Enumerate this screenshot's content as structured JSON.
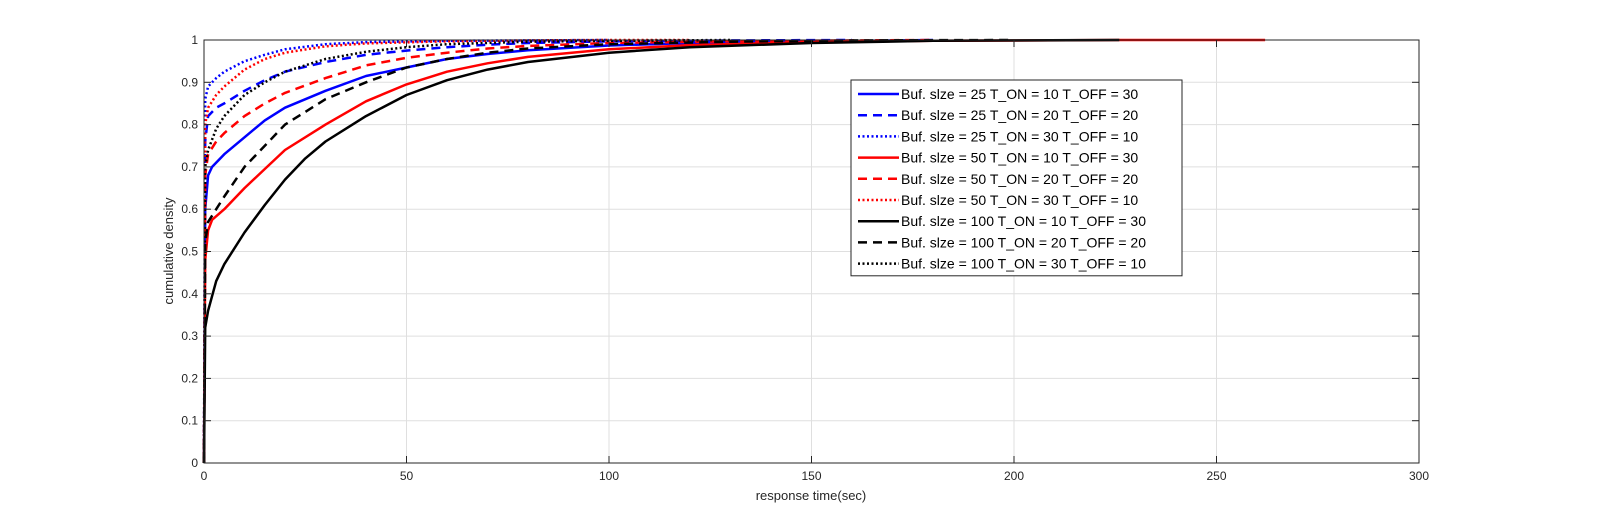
{
  "chart_data": {
    "type": "line",
    "title": "",
    "xlabel": "response time(sec)",
    "ylabel": "cumulative density",
    "xlim": [
      0,
      300
    ],
    "ylim": [
      0,
      1
    ],
    "xticks": [
      0,
      50,
      100,
      150,
      200,
      250,
      300
    ],
    "yticks": [
      0,
      0.1,
      0.2,
      0.3,
      0.4,
      0.5,
      0.6,
      0.7,
      0.8,
      0.9,
      1
    ],
    "grid": true,
    "legend_position": "top-right",
    "series": [
      {
        "name": "Buf. slze = 25 T_ON = 10 T_OFF = 30",
        "color": "#0000ff",
        "style": "solid",
        "x": [
          0,
          0.3,
          1,
          2,
          5,
          10,
          15,
          20,
          30,
          40,
          50,
          60,
          70,
          80,
          100,
          120,
          150,
          180
        ],
        "y": [
          0,
          0.6,
          0.68,
          0.7,
          0.73,
          0.77,
          0.81,
          0.84,
          0.88,
          0.915,
          0.935,
          0.955,
          0.967,
          0.976,
          0.987,
          0.993,
          0.997,
          1
        ]
      },
      {
        "name": "Buf. slze = 25 T_ON = 20 T_OFF = 20",
        "color": "#0000ff",
        "style": "dashed",
        "x": [
          0,
          0.3,
          1,
          3,
          5,
          10,
          15,
          20,
          30,
          40,
          50,
          60,
          70,
          80,
          100,
          130,
          160
        ],
        "y": [
          0,
          0.76,
          0.82,
          0.84,
          0.85,
          0.88,
          0.905,
          0.925,
          0.948,
          0.965,
          0.975,
          0.983,
          0.989,
          0.993,
          0.997,
          0.999,
          1
        ]
      },
      {
        "name": "Buf. slze = 25 T_ON = 30 T_OFF = 10",
        "color": "#0000ff",
        "style": "dotted",
        "x": [
          0,
          0.3,
          1,
          3,
          5,
          10,
          15,
          20,
          30,
          40,
          60,
          80,
          100
        ],
        "y": [
          0,
          0.86,
          0.89,
          0.91,
          0.925,
          0.95,
          0.965,
          0.978,
          0.99,
          0.995,
          0.998,
          0.999,
          1
        ]
      },
      {
        "name": "Buf. slze = 50 T_ON = 10 T_OFF = 30",
        "color": "#ff0000",
        "style": "solid",
        "x": [
          0,
          0.3,
          1,
          2,
          5,
          10,
          15,
          20,
          30,
          40,
          50,
          60,
          70,
          80,
          100,
          120,
          150,
          180,
          226,
          262
        ],
        "y": [
          0,
          0.48,
          0.55,
          0.575,
          0.6,
          0.65,
          0.695,
          0.74,
          0.8,
          0.855,
          0.895,
          0.925,
          0.945,
          0.96,
          0.978,
          0.988,
          0.995,
          0.998,
          1,
          1
        ]
      },
      {
        "name": "Buf. slze = 50 T_ON = 20 T_OFF = 20",
        "color": "#ff0000",
        "style": "dashed",
        "x": [
          0,
          0.3,
          1,
          3,
          5,
          10,
          15,
          20,
          30,
          40,
          50,
          60,
          70,
          80,
          100,
          130,
          160,
          180
        ],
        "y": [
          0,
          0.68,
          0.73,
          0.76,
          0.78,
          0.82,
          0.85,
          0.875,
          0.91,
          0.94,
          0.958,
          0.97,
          0.98,
          0.986,
          0.993,
          0.997,
          0.999,
          1
        ]
      },
      {
        "name": "Buf. slze = 50 T_ON = 30 T_OFF = 10",
        "color": "#ff0000",
        "style": "dotted",
        "x": [
          0,
          0.3,
          1,
          3,
          5,
          10,
          15,
          20,
          30,
          40,
          60,
          80,
          100,
          120
        ],
        "y": [
          0,
          0.8,
          0.84,
          0.87,
          0.89,
          0.93,
          0.955,
          0.97,
          0.985,
          0.992,
          0.997,
          0.999,
          1,
          1
        ]
      },
      {
        "name": "Buf. slze = 100 T_ON = 10 T_OFF = 30",
        "color": "#000000",
        "style": "solid",
        "x": [
          0,
          0.3,
          1,
          3,
          5,
          10,
          15,
          20,
          25,
          30,
          40,
          50,
          60,
          70,
          80,
          100,
          120,
          150,
          180,
          200,
          226
        ],
        "y": [
          0,
          0.32,
          0.36,
          0.43,
          0.47,
          0.545,
          0.61,
          0.67,
          0.72,
          0.76,
          0.82,
          0.87,
          0.905,
          0.93,
          0.948,
          0.97,
          0.983,
          0.993,
          0.998,
          0.999,
          1
        ]
      },
      {
        "name": "Buf. slze = 100 T_ON = 20 T_OFF = 20",
        "color": "#000000",
        "style": "dashed",
        "x": [
          0,
          0.3,
          1,
          3,
          5,
          10,
          15,
          20,
          30,
          40,
          50,
          60,
          70,
          80,
          100,
          130,
          160,
          200
        ],
        "y": [
          0,
          0.52,
          0.57,
          0.6,
          0.63,
          0.7,
          0.75,
          0.8,
          0.86,
          0.9,
          0.935,
          0.955,
          0.97,
          0.98,
          0.99,
          0.996,
          0.999,
          1
        ]
      },
      {
        "name": "Buf. slze = 100 T_ON = 30 T_OFF = 10",
        "color": "#000000",
        "style": "dotted",
        "x": [
          0,
          0.3,
          1,
          3,
          5,
          10,
          15,
          20,
          30,
          40,
          50,
          60,
          80,
          100,
          130
        ],
        "y": [
          0,
          0.7,
          0.74,
          0.79,
          0.82,
          0.87,
          0.9,
          0.925,
          0.955,
          0.972,
          0.983,
          0.99,
          0.996,
          0.998,
          1
        ]
      }
    ]
  }
}
